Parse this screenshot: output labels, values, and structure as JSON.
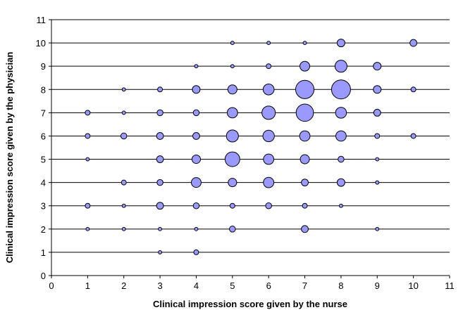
{
  "chart_data": {
    "type": "scatter",
    "subtype": "bubble",
    "xlabel": "Clinical impression score given by the nurse",
    "ylabel": "Clinical impression score given by the physician",
    "xlim": [
      0,
      11
    ],
    "ylim": [
      0,
      11
    ],
    "xticks": [
      0,
      1,
      2,
      3,
      4,
      5,
      6,
      7,
      8,
      9,
      10,
      11
    ],
    "yticks": [
      0,
      1,
      2,
      3,
      4,
      5,
      6,
      7,
      8,
      9,
      10,
      11
    ],
    "grid": "horizontal",
    "bubble_fill": "#9999ff",
    "bubble_stroke": "#000000",
    "points": [
      {
        "x": 3,
        "y": 1,
        "size": 1
      },
      {
        "x": 4,
        "y": 1,
        "size": 2
      },
      {
        "x": 1,
        "y": 2,
        "size": 1
      },
      {
        "x": 2,
        "y": 2,
        "size": 1
      },
      {
        "x": 3,
        "y": 2,
        "size": 1
      },
      {
        "x": 4,
        "y": 2,
        "size": 1
      },
      {
        "x": 5,
        "y": 2,
        "size": 3
      },
      {
        "x": 7,
        "y": 2,
        "size": 4
      },
      {
        "x": 9,
        "y": 2,
        "size": 1
      },
      {
        "x": 1,
        "y": 3,
        "size": 2
      },
      {
        "x": 2,
        "y": 3,
        "size": 1
      },
      {
        "x": 3,
        "y": 3,
        "size": 4
      },
      {
        "x": 4,
        "y": 3,
        "size": 3
      },
      {
        "x": 5,
        "y": 3,
        "size": 2
      },
      {
        "x": 6,
        "y": 3,
        "size": 3
      },
      {
        "x": 7,
        "y": 3,
        "size": 2
      },
      {
        "x": 8,
        "y": 3,
        "size": 1
      },
      {
        "x": 2,
        "y": 4,
        "size": 2
      },
      {
        "x": 3,
        "y": 4,
        "size": 3
      },
      {
        "x": 4,
        "y": 4,
        "size": 8
      },
      {
        "x": 5,
        "y": 4,
        "size": 6
      },
      {
        "x": 6,
        "y": 4,
        "size": 9
      },
      {
        "x": 7,
        "y": 4,
        "size": 4
      },
      {
        "x": 8,
        "y": 4,
        "size": 5
      },
      {
        "x": 9,
        "y": 4,
        "size": 1
      },
      {
        "x": 1,
        "y": 5,
        "size": 1
      },
      {
        "x": 3,
        "y": 5,
        "size": 4
      },
      {
        "x": 4,
        "y": 5,
        "size": 6
      },
      {
        "x": 5,
        "y": 5,
        "size": 18
      },
      {
        "x": 6,
        "y": 5,
        "size": 9
      },
      {
        "x": 7,
        "y": 5,
        "size": 7
      },
      {
        "x": 8,
        "y": 5,
        "size": 3
      },
      {
        "x": 9,
        "y": 5,
        "size": 1
      },
      {
        "x": 1,
        "y": 6,
        "size": 2
      },
      {
        "x": 2,
        "y": 6,
        "size": 3
      },
      {
        "x": 3,
        "y": 6,
        "size": 4
      },
      {
        "x": 4,
        "y": 6,
        "size": 4
      },
      {
        "x": 5,
        "y": 6,
        "size": 12
      },
      {
        "x": 6,
        "y": 6,
        "size": 11
      },
      {
        "x": 7,
        "y": 6,
        "size": 9
      },
      {
        "x": 8,
        "y": 6,
        "size": 9
      },
      {
        "x": 9,
        "y": 6,
        "size": 2
      },
      {
        "x": 10,
        "y": 6,
        "size": 2
      },
      {
        "x": 1,
        "y": 7,
        "size": 2
      },
      {
        "x": 2,
        "y": 7,
        "size": 1
      },
      {
        "x": 3,
        "y": 7,
        "size": 3
      },
      {
        "x": 4,
        "y": 7,
        "size": 3
      },
      {
        "x": 5,
        "y": 7,
        "size": 9
      },
      {
        "x": 6,
        "y": 7,
        "size": 15
      },
      {
        "x": 7,
        "y": 7,
        "size": 25
      },
      {
        "x": 8,
        "y": 7,
        "size": 10
      },
      {
        "x": 9,
        "y": 7,
        "size": 4
      },
      {
        "x": 2,
        "y": 8,
        "size": 1
      },
      {
        "x": 3,
        "y": 8,
        "size": 2
      },
      {
        "x": 4,
        "y": 8,
        "size": 5
      },
      {
        "x": 5,
        "y": 8,
        "size": 7
      },
      {
        "x": 6,
        "y": 8,
        "size": 10
      },
      {
        "x": 7,
        "y": 8,
        "size": 28
      },
      {
        "x": 8,
        "y": 8,
        "size": 30
      },
      {
        "x": 9,
        "y": 8,
        "size": 5
      },
      {
        "x": 10,
        "y": 8,
        "size": 2
      },
      {
        "x": 4,
        "y": 9,
        "size": 1
      },
      {
        "x": 5,
        "y": 9,
        "size": 1
      },
      {
        "x": 6,
        "y": 9,
        "size": 2
      },
      {
        "x": 7,
        "y": 9,
        "size": 8
      },
      {
        "x": 8,
        "y": 9,
        "size": 12
      },
      {
        "x": 9,
        "y": 9,
        "size": 5
      },
      {
        "x": 5,
        "y": 10,
        "size": 1
      },
      {
        "x": 6,
        "y": 10,
        "size": 1
      },
      {
        "x": 7,
        "y": 10,
        "size": 1
      },
      {
        "x": 8,
        "y": 10,
        "size": 5
      },
      {
        "x": 10,
        "y": 10,
        "size": 4
      }
    ]
  }
}
